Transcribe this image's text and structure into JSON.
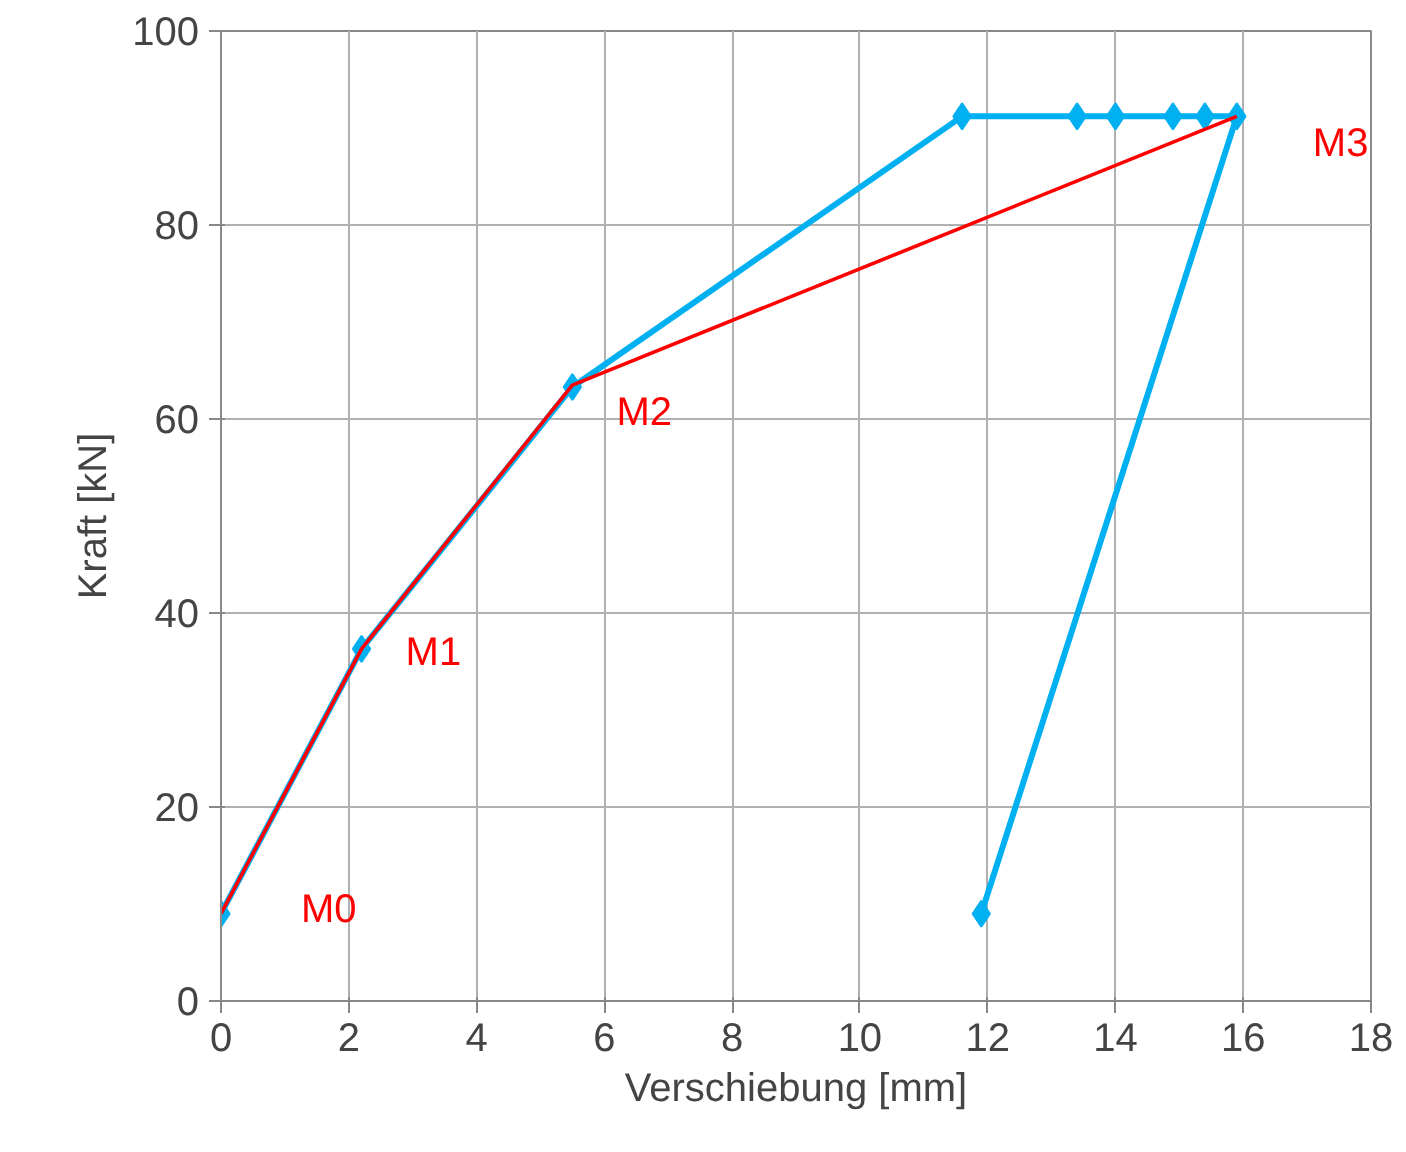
{
  "chart_data": {
    "type": "line",
    "xlabel": "Verschiebung [mm]",
    "ylabel": "Kraft [kN]",
    "series": [
      {
        "color": "#00b0f0",
        "marker": "diamond",
        "x": [
          0,
          2.2,
          5.5,
          11.6,
          13.4,
          14.0,
          14.9,
          15.4,
          15.9,
          11.9
        ],
        "values": [
          9,
          36.3,
          63.3,
          91.2,
          91.2,
          91.2,
          91.2,
          91.2,
          91.2,
          9
        ]
      },
      {
        "color": "#ff0000",
        "marker": "none",
        "x": [
          0,
          2.2,
          5.5,
          15.9
        ],
        "values": [
          9,
          36.3,
          63.5,
          91.2
        ]
      }
    ],
    "annotations": [
      {
        "text": "M0",
        "x": 0,
        "y": 9
      },
      {
        "text": "M1",
        "x": 2.2,
        "y": 36.3
      },
      {
        "text": "M2",
        "x": 5.5,
        "y": 63.5
      },
      {
        "text": "M3",
        "x": 15.9,
        "y": 91.2
      }
    ],
    "xlim": [
      0,
      18
    ],
    "xticks": [
      0,
      2,
      4,
      6,
      8,
      10,
      12,
      14,
      16,
      18
    ],
    "ylim": [
      0,
      100
    ],
    "yticks": [
      0,
      20,
      40,
      60,
      80,
      100
    ],
    "grid": true
  }
}
